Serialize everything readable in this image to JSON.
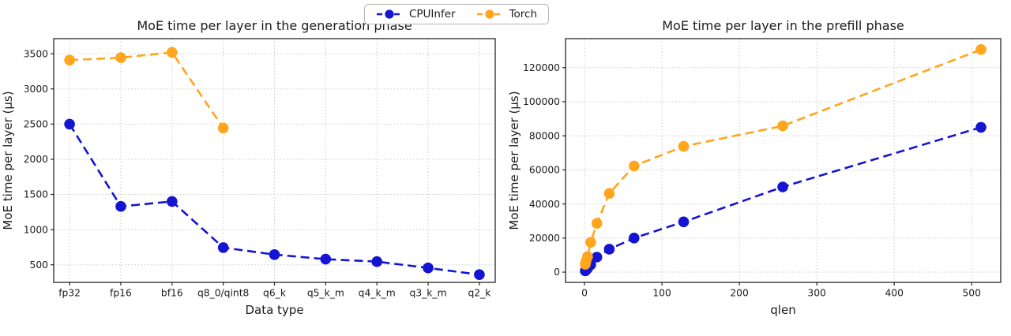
{
  "figure": {
    "background": "#ffffff"
  },
  "legend": {
    "items": [
      {
        "label": "CPUInfer",
        "color": "#1414d2"
      },
      {
        "label": "Torch",
        "color": "#ffa51e"
      }
    ]
  },
  "chart_data": [
    {
      "type": "line",
      "title": "MoE time per layer in the generation phase",
      "xlabel": "Data type",
      "ylabel": "MoE time per layer (µs)",
      "x_type": "categorical",
      "categories": [
        "fp32",
        "fp16",
        "bf16",
        "q8_0/qint8",
        "q6_k",
        "q5_k_m",
        "q4_k_m",
        "q3_k_m",
        "q2_k"
      ],
      "ylim": [
        250,
        3715
      ],
      "yticks": [
        500,
        1000,
        1500,
        2000,
        2500,
        3000,
        3500
      ],
      "grid": true,
      "line_style": "dashed",
      "marker": "circle",
      "legend_position": "top-center",
      "series": [
        {
          "name": "CPUInfer",
          "color": "#1414d2",
          "values": [
            2500,
            1330,
            1400,
            745,
            645,
            580,
            545,
            455,
            360
          ]
        },
        {
          "name": "Torch",
          "color": "#ffa51e",
          "values": [
            3410,
            3445,
            3520,
            2445,
            null,
            null,
            null,
            null,
            null
          ]
        }
      ]
    },
    {
      "type": "line",
      "title": "MoE time per layer in the prefill phase",
      "xlabel": "qlen",
      "ylabel": "MoE time per layer (µs)",
      "x_type": "numeric",
      "x": [
        1,
        2,
        4,
        8,
        16,
        32,
        64,
        128,
        256,
        512
      ],
      "xlim": [
        -24.5,
        537.5
      ],
      "xticks": [
        0,
        100,
        200,
        300,
        400,
        500
      ],
      "ylim": [
        -6000,
        137000
      ],
      "yticks": [
        0,
        20000,
        40000,
        60000,
        80000,
        100000,
        120000
      ],
      "grid": true,
      "line_style": "dashed",
      "marker": "circle",
      "series": [
        {
          "name": "CPUInfer",
          "color": "#1414d2",
          "values": [
            700,
            1200,
            2200,
            4300,
            8800,
            13500,
            20000,
            29500,
            50000,
            85000
          ]
        },
        {
          "name": "Torch",
          "color": "#ffa51e",
          "values": [
            4600,
            6500,
            9200,
            17500,
            28600,
            46200,
            62300,
            73800,
            85800,
            130600
          ]
        }
      ]
    }
  ]
}
